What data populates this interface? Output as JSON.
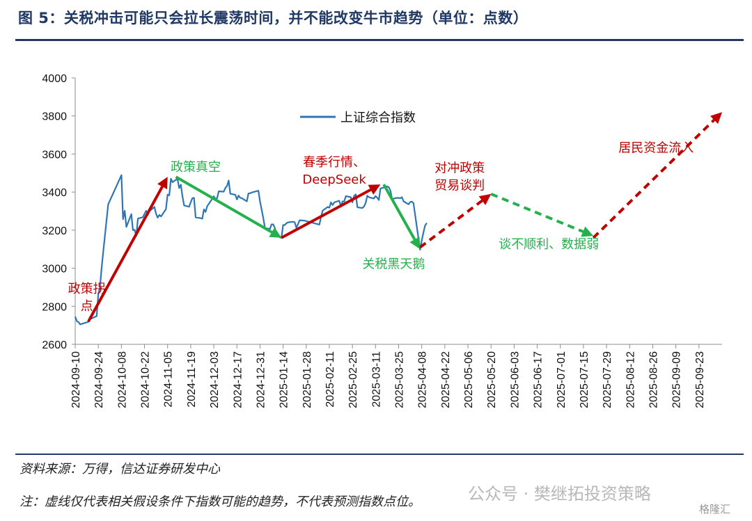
{
  "header": {
    "title": "图 5：关税冲击可能只会拉长震荡时间，并不能改变牛市趋势（单位：点数）"
  },
  "footer": {
    "source": "资料来源：万得，信达证券研发中心",
    "note": "注：虚线仅代表相关假设条件下指数可能的趋势，不代表预测指数点位。",
    "watermark": "公众号 · 樊继拓投资策略",
    "badge": "格隆汇"
  },
  "colors": {
    "series": "#2e75b6",
    "up": "#c00000",
    "down": "#22b14c",
    "annotation_red": "#c00000",
    "annotation_green": "#22b14c",
    "header": "#1f3864"
  },
  "chart_data": {
    "type": "line",
    "title": "",
    "xlabel": "",
    "ylabel": "",
    "ylim": [
      2600,
      4000
    ],
    "yticks": [
      2600,
      2800,
      3000,
      3200,
      3400,
      3600,
      3800,
      4000
    ],
    "xlim": [
      "2024-09-10",
      "2025-10-07"
    ],
    "xticks": [
      "2024-09-10",
      "2024-09-24",
      "2024-10-08",
      "2024-10-22",
      "2024-11-05",
      "2024-11-19",
      "2024-12-03",
      "2024-12-17",
      "2024-12-31",
      "2025-01-14",
      "2025-01-28",
      "2025-02-11",
      "2025-02-25",
      "2025-03-11",
      "2025-03-25",
      "2025-04-08",
      "2025-04-22",
      "2025-05-06",
      "2025-05-20",
      "2025-06-03",
      "2025-06-17",
      "2025-07-01",
      "2025-07-15",
      "2025-07-29",
      "2025-08-12",
      "2025-08-26",
      "2025-09-09",
      "2025-09-23"
    ],
    "legend": {
      "label": "上证综合指数",
      "position": "top-center"
    },
    "series": [
      {
        "name": "上证综合指数",
        "points": [
          [
            "2024-09-10",
            2745
          ],
          [
            "2024-09-11",
            2721
          ],
          [
            "2024-09-12",
            2717
          ],
          [
            "2024-09-13",
            2705
          ],
          [
            "2024-09-18",
            2718
          ],
          [
            "2024-09-19",
            2736
          ],
          [
            "2024-09-20",
            2736
          ],
          [
            "2024-09-23",
            2748
          ],
          [
            "2024-09-24",
            2863
          ],
          [
            "2024-09-25",
            2897
          ],
          [
            "2024-09-26",
            3000
          ],
          [
            "2024-09-27",
            3087
          ],
          [
            "2024-09-30",
            3336
          ],
          [
            "2024-10-08",
            3489
          ],
          [
            "2024-10-09",
            3258
          ],
          [
            "2024-10-10",
            3302
          ],
          [
            "2024-10-11",
            3217
          ],
          [
            "2024-10-14",
            3284
          ],
          [
            "2024-10-15",
            3201
          ],
          [
            "2024-10-16",
            3202
          ],
          [
            "2024-10-17",
            3169
          ],
          [
            "2024-10-18",
            3261
          ],
          [
            "2024-10-21",
            3268
          ],
          [
            "2024-10-22",
            3285
          ],
          [
            "2024-10-23",
            3302
          ],
          [
            "2024-10-24",
            3280
          ],
          [
            "2024-10-25",
            3300
          ],
          [
            "2024-10-28",
            3322
          ],
          [
            "2024-10-29",
            3286
          ],
          [
            "2024-10-30",
            3266
          ],
          [
            "2024-10-31",
            3280
          ],
          [
            "2024-11-01",
            3272
          ],
          [
            "2024-11-04",
            3310
          ],
          [
            "2024-11-05",
            3387
          ],
          [
            "2024-11-06",
            3383
          ],
          [
            "2024-11-07",
            3470
          ],
          [
            "2024-11-08",
            3452
          ],
          [
            "2024-11-11",
            3470
          ],
          [
            "2024-11-12",
            3421
          ],
          [
            "2024-11-13",
            3439
          ],
          [
            "2024-11-14",
            3379
          ],
          [
            "2024-11-15",
            3330
          ],
          [
            "2024-11-18",
            3323
          ],
          [
            "2024-11-19",
            3346
          ],
          [
            "2024-11-20",
            3368
          ],
          [
            "2024-11-21",
            3370
          ],
          [
            "2024-11-22",
            3267
          ],
          [
            "2024-11-25",
            3263
          ],
          [
            "2024-11-26",
            3260
          ],
          [
            "2024-11-27",
            3309
          ],
          [
            "2024-11-28",
            3296
          ],
          [
            "2024-11-29",
            3326
          ],
          [
            "2024-12-02",
            3364
          ],
          [
            "2024-12-03",
            3378
          ],
          [
            "2024-12-04",
            3364
          ],
          [
            "2024-12-05",
            3368
          ],
          [
            "2024-12-06",
            3404
          ],
          [
            "2024-12-09",
            3402
          ],
          [
            "2024-12-10",
            3422
          ],
          [
            "2024-12-11",
            3432
          ],
          [
            "2024-12-12",
            3461
          ],
          [
            "2024-12-13",
            3391
          ],
          [
            "2024-12-16",
            3386
          ],
          [
            "2024-12-17",
            3361
          ],
          [
            "2024-12-18",
            3382
          ],
          [
            "2024-12-19",
            3370
          ],
          [
            "2024-12-20",
            3368
          ],
          [
            "2024-12-23",
            3351
          ],
          [
            "2024-12-24",
            3393
          ],
          [
            "2024-12-25",
            3394
          ],
          [
            "2024-12-26",
            3398
          ],
          [
            "2024-12-27",
            3400
          ],
          [
            "2024-12-30",
            3407
          ],
          [
            "2024-12-31",
            3352
          ],
          [
            "2025-01-02",
            3262
          ],
          [
            "2025-01-03",
            3211
          ],
          [
            "2025-01-06",
            3206
          ],
          [
            "2025-01-07",
            3230
          ],
          [
            "2025-01-08",
            3230
          ],
          [
            "2025-01-09",
            3211
          ],
          [
            "2025-01-10",
            3169
          ],
          [
            "2025-01-13",
            3160
          ],
          [
            "2025-01-14",
            3227
          ],
          [
            "2025-01-15",
            3227
          ],
          [
            "2025-01-16",
            3236
          ],
          [
            "2025-01-17",
            3241
          ],
          [
            "2025-01-20",
            3244
          ],
          [
            "2025-01-21",
            3242
          ],
          [
            "2025-01-22",
            3213
          ],
          [
            "2025-01-23",
            3230
          ],
          [
            "2025-01-24",
            3252
          ],
          [
            "2025-01-27",
            3250
          ],
          [
            "2025-02-05",
            3229
          ],
          [
            "2025-02-06",
            3270
          ],
          [
            "2025-02-07",
            3303
          ],
          [
            "2025-02-10",
            3322
          ],
          [
            "2025-02-11",
            3318
          ],
          [
            "2025-02-12",
            3346
          ],
          [
            "2025-02-13",
            3332
          ],
          [
            "2025-02-14",
            3346
          ],
          [
            "2025-02-17",
            3355
          ],
          [
            "2025-02-18",
            3324
          ],
          [
            "2025-02-19",
            3351
          ],
          [
            "2025-02-20",
            3350
          ],
          [
            "2025-02-21",
            3379
          ],
          [
            "2025-02-24",
            3373
          ],
          [
            "2025-02-25",
            3346
          ],
          [
            "2025-02-26",
            3380
          ],
          [
            "2025-02-27",
            3388
          ],
          [
            "2025-02-28",
            3320
          ],
          [
            "2025-03-03",
            3316
          ],
          [
            "2025-03-04",
            3324
          ],
          [
            "2025-03-05",
            3342
          ],
          [
            "2025-03-06",
            3381
          ],
          [
            "2025-03-07",
            3373
          ],
          [
            "2025-03-10",
            3366
          ],
          [
            "2025-03-11",
            3379
          ],
          [
            "2025-03-12",
            3371
          ],
          [
            "2025-03-13",
            3358
          ],
          [
            "2025-03-14",
            3419
          ],
          [
            "2025-03-17",
            3426
          ],
          [
            "2025-03-18",
            3430
          ],
          [
            "2025-03-19",
            3426
          ],
          [
            "2025-03-20",
            3408
          ],
          [
            "2025-03-21",
            3364
          ],
          [
            "2025-03-24",
            3370
          ],
          [
            "2025-03-25",
            3369
          ],
          [
            "2025-03-26",
            3368
          ],
          [
            "2025-03-27",
            3373
          ],
          [
            "2025-03-28",
            3351
          ],
          [
            "2025-03-31",
            3336
          ],
          [
            "2025-04-01",
            3348
          ],
          [
            "2025-04-02",
            3350
          ],
          [
            "2025-04-03",
            3342
          ],
          [
            "2025-04-07",
            3097
          ],
          [
            "2025-04-08",
            3145
          ],
          [
            "2025-04-09",
            3186
          ],
          [
            "2025-04-10",
            3223
          ],
          [
            "2025-04-11",
            3238
          ]
        ]
      }
    ],
    "trend_arrows": [
      {
        "from": [
          "2024-09-18",
          2720
        ],
        "to": [
          "2024-11-05",
          3480
        ],
        "style": "solid",
        "color": "#c00000",
        "label": "政策拐点"
      },
      {
        "from": [
          "2024-11-10",
          3480
        ],
        "to": [
          "2025-01-13",
          3160
        ],
        "style": "solid",
        "color": "#22b14c",
        "label": "政策真空"
      },
      {
        "from": [
          "2025-01-13",
          3160
        ],
        "to": [
          "2025-03-14",
          3440
        ],
        "style": "solid",
        "color": "#c00000",
        "label": "春季行情、DeepSeek"
      },
      {
        "from": [
          "2025-03-16",
          3440
        ],
        "to": [
          "2025-04-07",
          3100
        ],
        "style": "solid",
        "color": "#22b14c",
        "label": "关税黑天鹅"
      },
      {
        "from": [
          "2025-04-07",
          3110
        ],
        "to": [
          "2025-05-20",
          3390
        ],
        "style": "dashed",
        "color": "#c00000",
        "label": "对冲政策贸易谈判"
      },
      {
        "from": [
          "2025-05-20",
          3390
        ],
        "to": [
          "2025-07-21",
          3170
        ],
        "style": "dashed",
        "color": "#22b14c",
        "label": "谈不顺利、数据弱"
      },
      {
        "from": [
          "2025-07-21",
          3160
        ],
        "to": [
          "2025-10-07",
          3820
        ],
        "style": "dashed",
        "color": "#c00000",
        "label": "居民资金流入"
      }
    ],
    "annotations": [
      {
        "lines": [
          "政策拐",
          "点"
        ],
        "at": [
          "2024-09-17",
          2870
        ],
        "color": "#c00000"
      },
      {
        "lines": [
          "政策真空"
        ],
        "at": [
          "2024-11-22",
          3510
        ],
        "color": "#22b14c"
      },
      {
        "lines": [
          "春季行情、",
          "DeepSeek"
        ],
        "at": [
          "2025-02-14",
          3535
        ],
        "color": "#c00000"
      },
      {
        "lines": [
          "关税黑天鹅"
        ],
        "at": [
          "2025-03-22",
          3000
        ],
        "color": "#22b14c"
      },
      {
        "lines": [
          "对冲政策",
          "贸易谈判"
        ],
        "at": [
          "2025-05-01",
          3505
        ],
        "color": "#c00000"
      },
      {
        "lines": [
          "谈不顺利、数据弱"
        ],
        "at": [
          "2025-06-24",
          3105
        ],
        "color": "#22b14c"
      },
      {
        "lines": [
          "居民资金流入"
        ],
        "at": [
          "2025-08-28",
          3610
        ],
        "color": "#c00000"
      }
    ]
  }
}
